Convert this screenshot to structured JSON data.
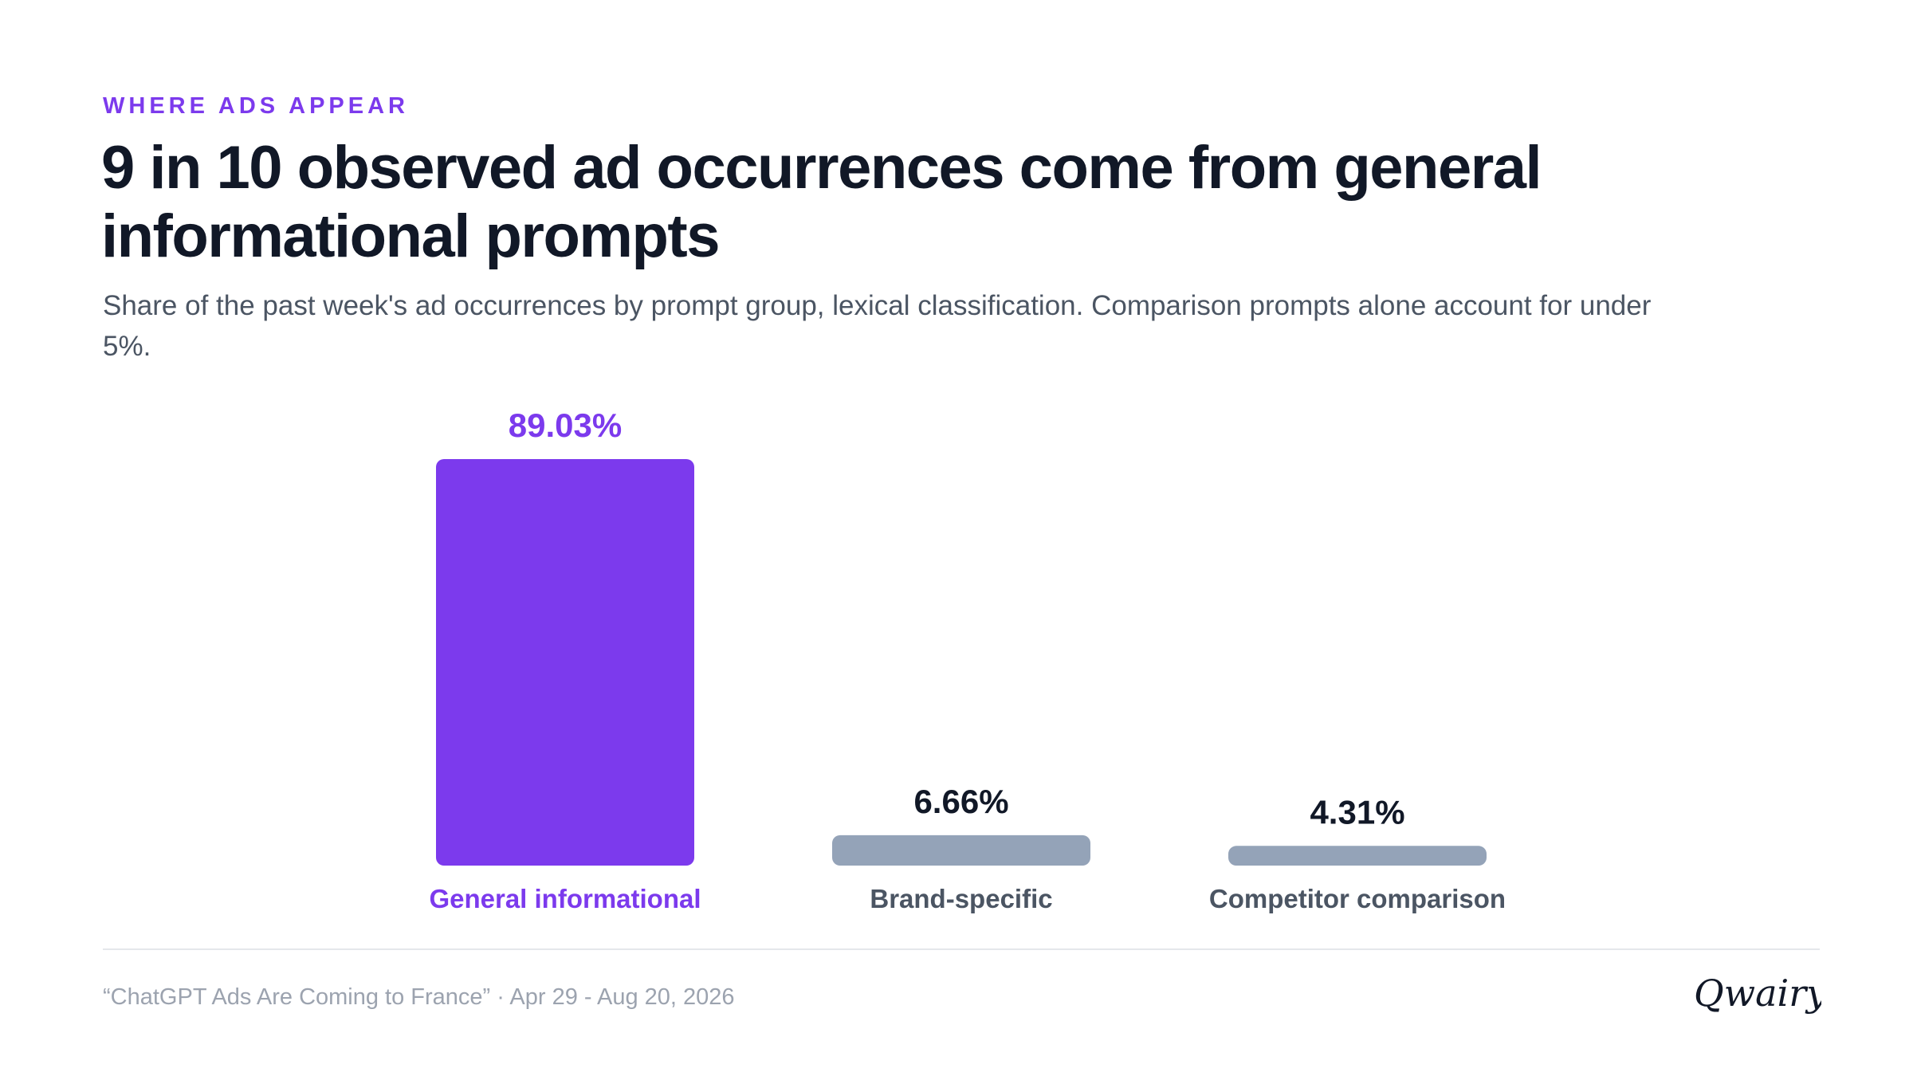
{
  "header": {
    "eyebrow": "WHERE ADS APPEAR",
    "title": "9 in 10 observed ad occurrences come from general informational prompts",
    "subtitle": "Share of the past week's ad occurrences by prompt group, lexical classification. Comparison prompts alone account for under 5%."
  },
  "chart_data": {
    "type": "bar",
    "categories": [
      "General informational",
      "Brand-specific",
      "Competitor comparison"
    ],
    "values": [
      89.03,
      6.66,
      4.31
    ],
    "value_labels": [
      "89.03%",
      "6.66%",
      "4.31%"
    ],
    "ylim": [
      0,
      89.03
    ],
    "grid": false,
    "highlight_index": 0,
    "colors": {
      "highlight_bar": "#7c3aed",
      "highlight_text": "#7c3aed",
      "other_bar": "#94a3b8",
      "value_text": "#111827",
      "category_text": "#4b5563"
    }
  },
  "footer": {
    "source": "“ChatGPT Ads Are Coming to France” · Apr 29 - Aug 20, 2026",
    "logo_text": "Qwairy"
  },
  "colors": {
    "accent": "#7c3aed",
    "title": "#111827",
    "muted": "#9ca3af",
    "divider": "#e5e7eb"
  }
}
